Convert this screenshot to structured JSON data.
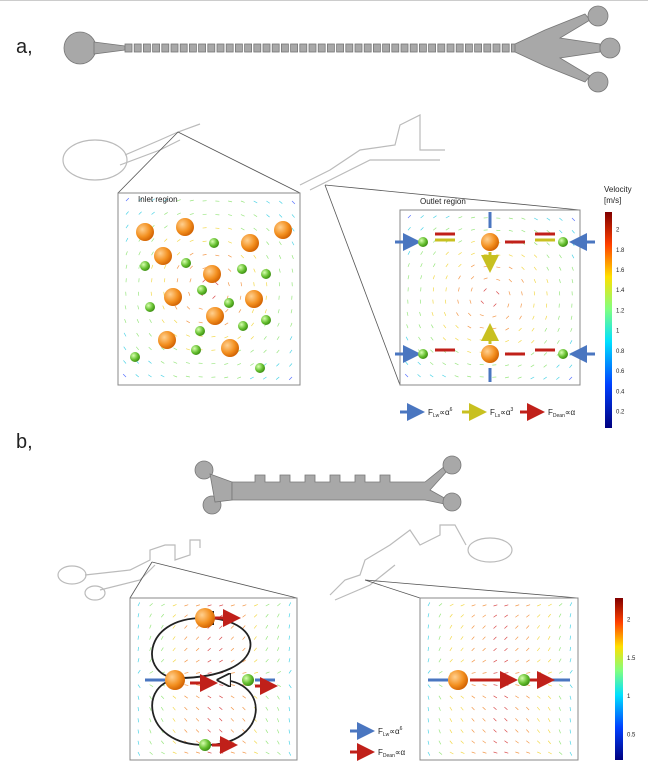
{
  "panel_a": {
    "label": "a,",
    "inlet_title": "Inlet region",
    "outlet_title": "Outlet region",
    "colorbar_title": [
      "Velocity",
      "[m/s]"
    ],
    "colorbar_ticks": [
      "2",
      "1.8",
      "1.6",
      "1.4",
      "1.2",
      "1",
      "0.8",
      "0.6",
      "0.4",
      "0.2"
    ],
    "legend": [
      {
        "symbol": "F",
        "sub": "Lw",
        "rel": "∝α",
        "sup": "6"
      },
      {
        "symbol": "F",
        "sub": "Ls",
        "rel": "∝α",
        "sup": "3"
      },
      {
        "symbol": "F",
        "sub": "Dean",
        "rel": "∝α",
        "sup": ""
      }
    ]
  },
  "panel_b": {
    "label": "b,",
    "colorbar_ticks": [
      "2",
      "1.5",
      "1",
      "0.5"
    ],
    "legend": [
      {
        "symbol": "F",
        "sub": "Lw",
        "rel": "∝α",
        "sup": "6"
      },
      {
        "symbol": "F",
        "sub": "Dean",
        "rel": "∝α",
        "sup": ""
      }
    ]
  }
}
